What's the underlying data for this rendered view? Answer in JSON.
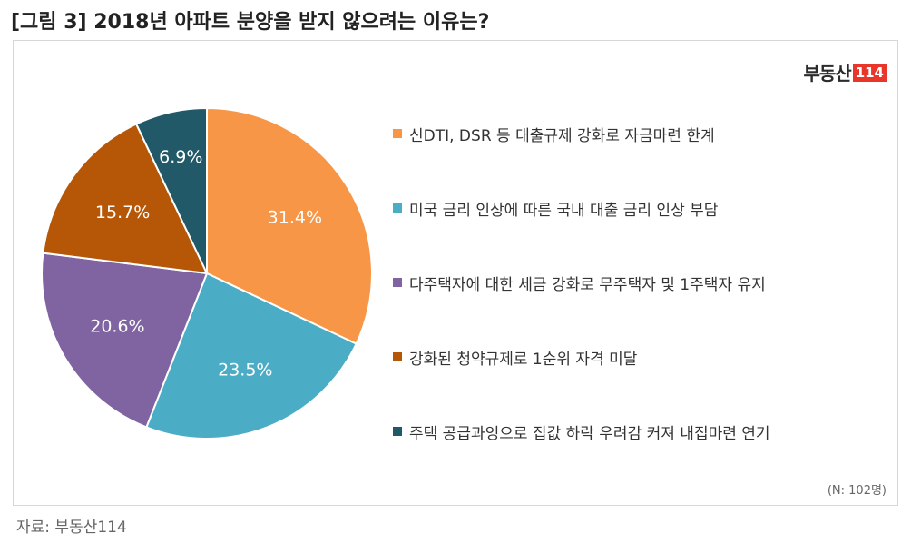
{
  "title": "[그림 3] 2018년 아파트 분양을 받지 않으려는 이유는?",
  "logo": {
    "text": "부동산",
    "number": "114",
    "accent": "#e8372a"
  },
  "note": "(N: 102명)",
  "source": "자료: 부동산114",
  "chart_data": {
    "type": "pie",
    "title": "[그림 3] 2018년 아파트 분양을 받지 않으려는 이유는?",
    "slices": [
      {
        "label": "신DTI, DSR 등 대출규제 강화로 자금마련 한계",
        "value": 31.4,
        "value_label": "31.4%",
        "color": "#f79646"
      },
      {
        "label": "미국 금리 인상에 따른 국내 대출 금리 인상 부담",
        "value": 23.5,
        "value_label": "23.5%",
        "color": "#4bacc6"
      },
      {
        "label": "다주택자에 대한 세금 강화로 무주택자 및 1주택자 유지",
        "value": 20.6,
        "value_label": "20.6%",
        "color": "#8064a2"
      },
      {
        "label": "강화된 청약규제로 1순위 자격 미달",
        "value": 15.7,
        "value_label": "15.7%",
        "color": "#b65708"
      },
      {
        "label": "주택 공급과잉으로 집값 하락 우려감 커져 내집마련 연기",
        "value": 6.9,
        "value_label": "6.9%",
        "color": "#215968"
      }
    ],
    "legend_position": "right"
  }
}
